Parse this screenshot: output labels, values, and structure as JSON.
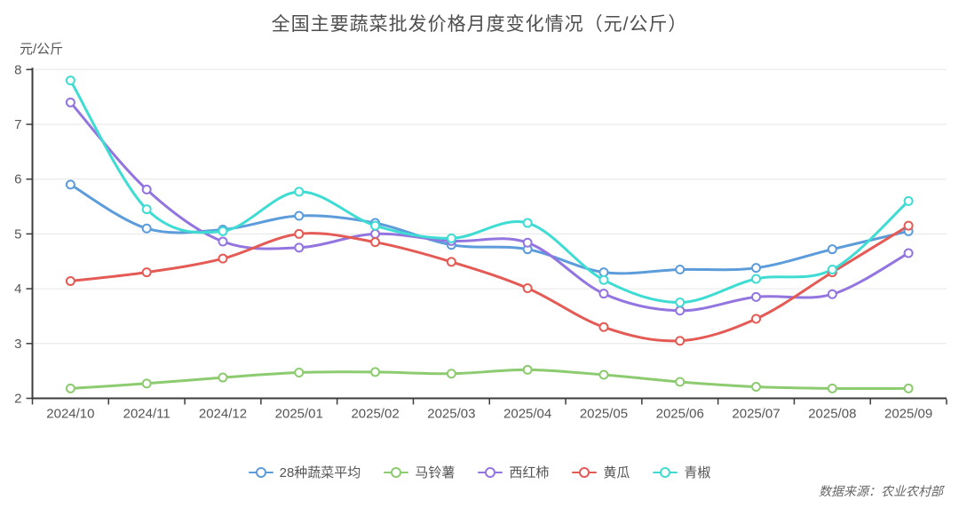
{
  "title": "全国主要蔬菜批发价格月度变化情况（元/公斤）",
  "source_note": "数据来源：农业农村部",
  "chart_data": {
    "type": "line",
    "title": "全国主要蔬菜批发价格月度变化情况（元/公斤）",
    "xlabel": "",
    "ylabel": "元/公斤",
    "ylim": [
      2,
      8
    ],
    "y_ticks": [
      2,
      3,
      4,
      5,
      6,
      7,
      8
    ],
    "grid": true,
    "smooth": true,
    "legend_position": "bottom",
    "axis_color": "#3c3c3c",
    "grid_color": "#e6e6e6",
    "label_color": "#555555",
    "categories": [
      "2024/10",
      "2024/11",
      "2024/12",
      "2025/01",
      "2025/02",
      "2025/03",
      "2025/04",
      "2025/05",
      "2025/06",
      "2025/07",
      "2025/08",
      "2025/09"
    ],
    "series": [
      {
        "name": "28种蔬菜平均",
        "color": "#5C9CDB",
        "values": [
          5.9,
          5.1,
          5.08,
          5.33,
          5.2,
          4.8,
          4.72,
          4.3,
          4.35,
          4.38,
          4.72,
          5.05
        ]
      },
      {
        "name": "马铃薯",
        "color": "#8CCB70",
        "values": [
          2.18,
          2.27,
          2.38,
          2.47,
          2.48,
          2.45,
          2.52,
          2.43,
          2.3,
          2.21,
          2.18,
          2.18
        ]
      },
      {
        "name": "西红柿",
        "color": "#9375E0",
        "values": [
          7.4,
          5.81,
          4.86,
          4.75,
          5.0,
          4.87,
          4.84,
          3.91,
          3.6,
          3.85,
          3.9,
          4.65
        ]
      },
      {
        "name": "黄瓜",
        "color": "#E45B56",
        "values": [
          4.14,
          4.3,
          4.55,
          5.0,
          4.85,
          4.49,
          4.01,
          3.3,
          3.05,
          3.45,
          4.3,
          5.15
        ]
      },
      {
        "name": "青椒",
        "color": "#3EDCD2",
        "values": [
          7.8,
          5.45,
          5.05,
          5.77,
          5.15,
          4.92,
          5.2,
          4.16,
          3.75,
          4.18,
          4.35,
          5.6
        ]
      }
    ]
  }
}
